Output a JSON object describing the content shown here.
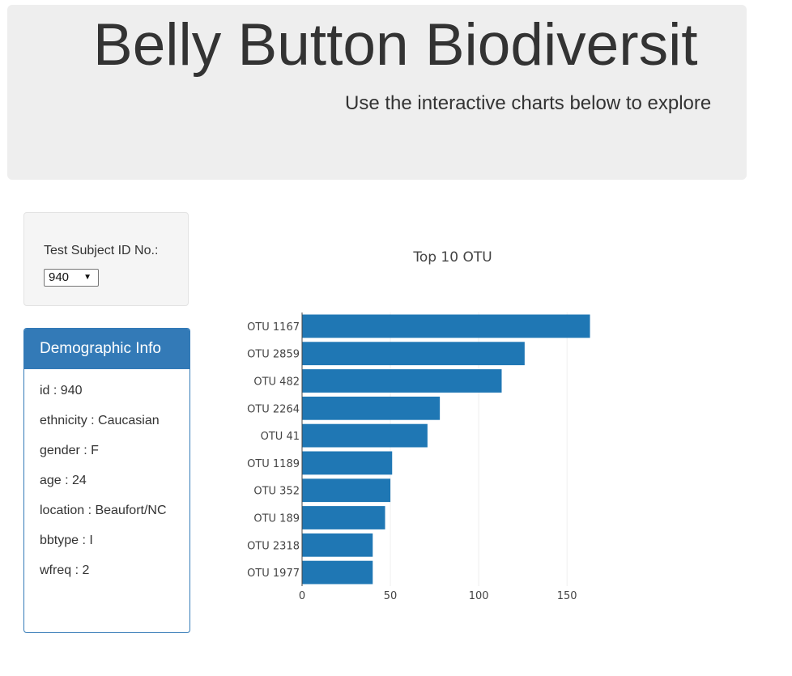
{
  "header": {
    "title": "Belly Button Biodiversit",
    "lead": "Use the interactive charts below to explore"
  },
  "selector": {
    "label": "Test Subject ID No.:",
    "selected": "940"
  },
  "demographics": {
    "heading": "Demographic Info",
    "lines": [
      "id : 940",
      "ethnicity : Caucasian",
      "gender : F",
      "age : 24",
      "location : Beaufort/NC",
      "bbtype : I",
      "wfreq : 2"
    ]
  },
  "colors": {
    "bar": "#1f77b4",
    "panel": "#337ab7"
  },
  "chart_data": {
    "type": "bar",
    "orientation": "horizontal",
    "title": "Top 10 OTU",
    "categories": [
      "OTU 1167",
      "OTU 2859",
      "OTU 482",
      "OTU 2264",
      "OTU 41",
      "OTU 1189",
      "OTU 352",
      "OTU 189",
      "OTU 2318",
      "OTU 1977"
    ],
    "values": [
      163,
      126,
      113,
      78,
      71,
      51,
      50,
      47,
      40,
      40
    ],
    "xticks": [
      0,
      50,
      100,
      150
    ],
    "xlim": [
      0,
      171
    ],
    "grid": true,
    "xlabel": "",
    "ylabel": ""
  }
}
